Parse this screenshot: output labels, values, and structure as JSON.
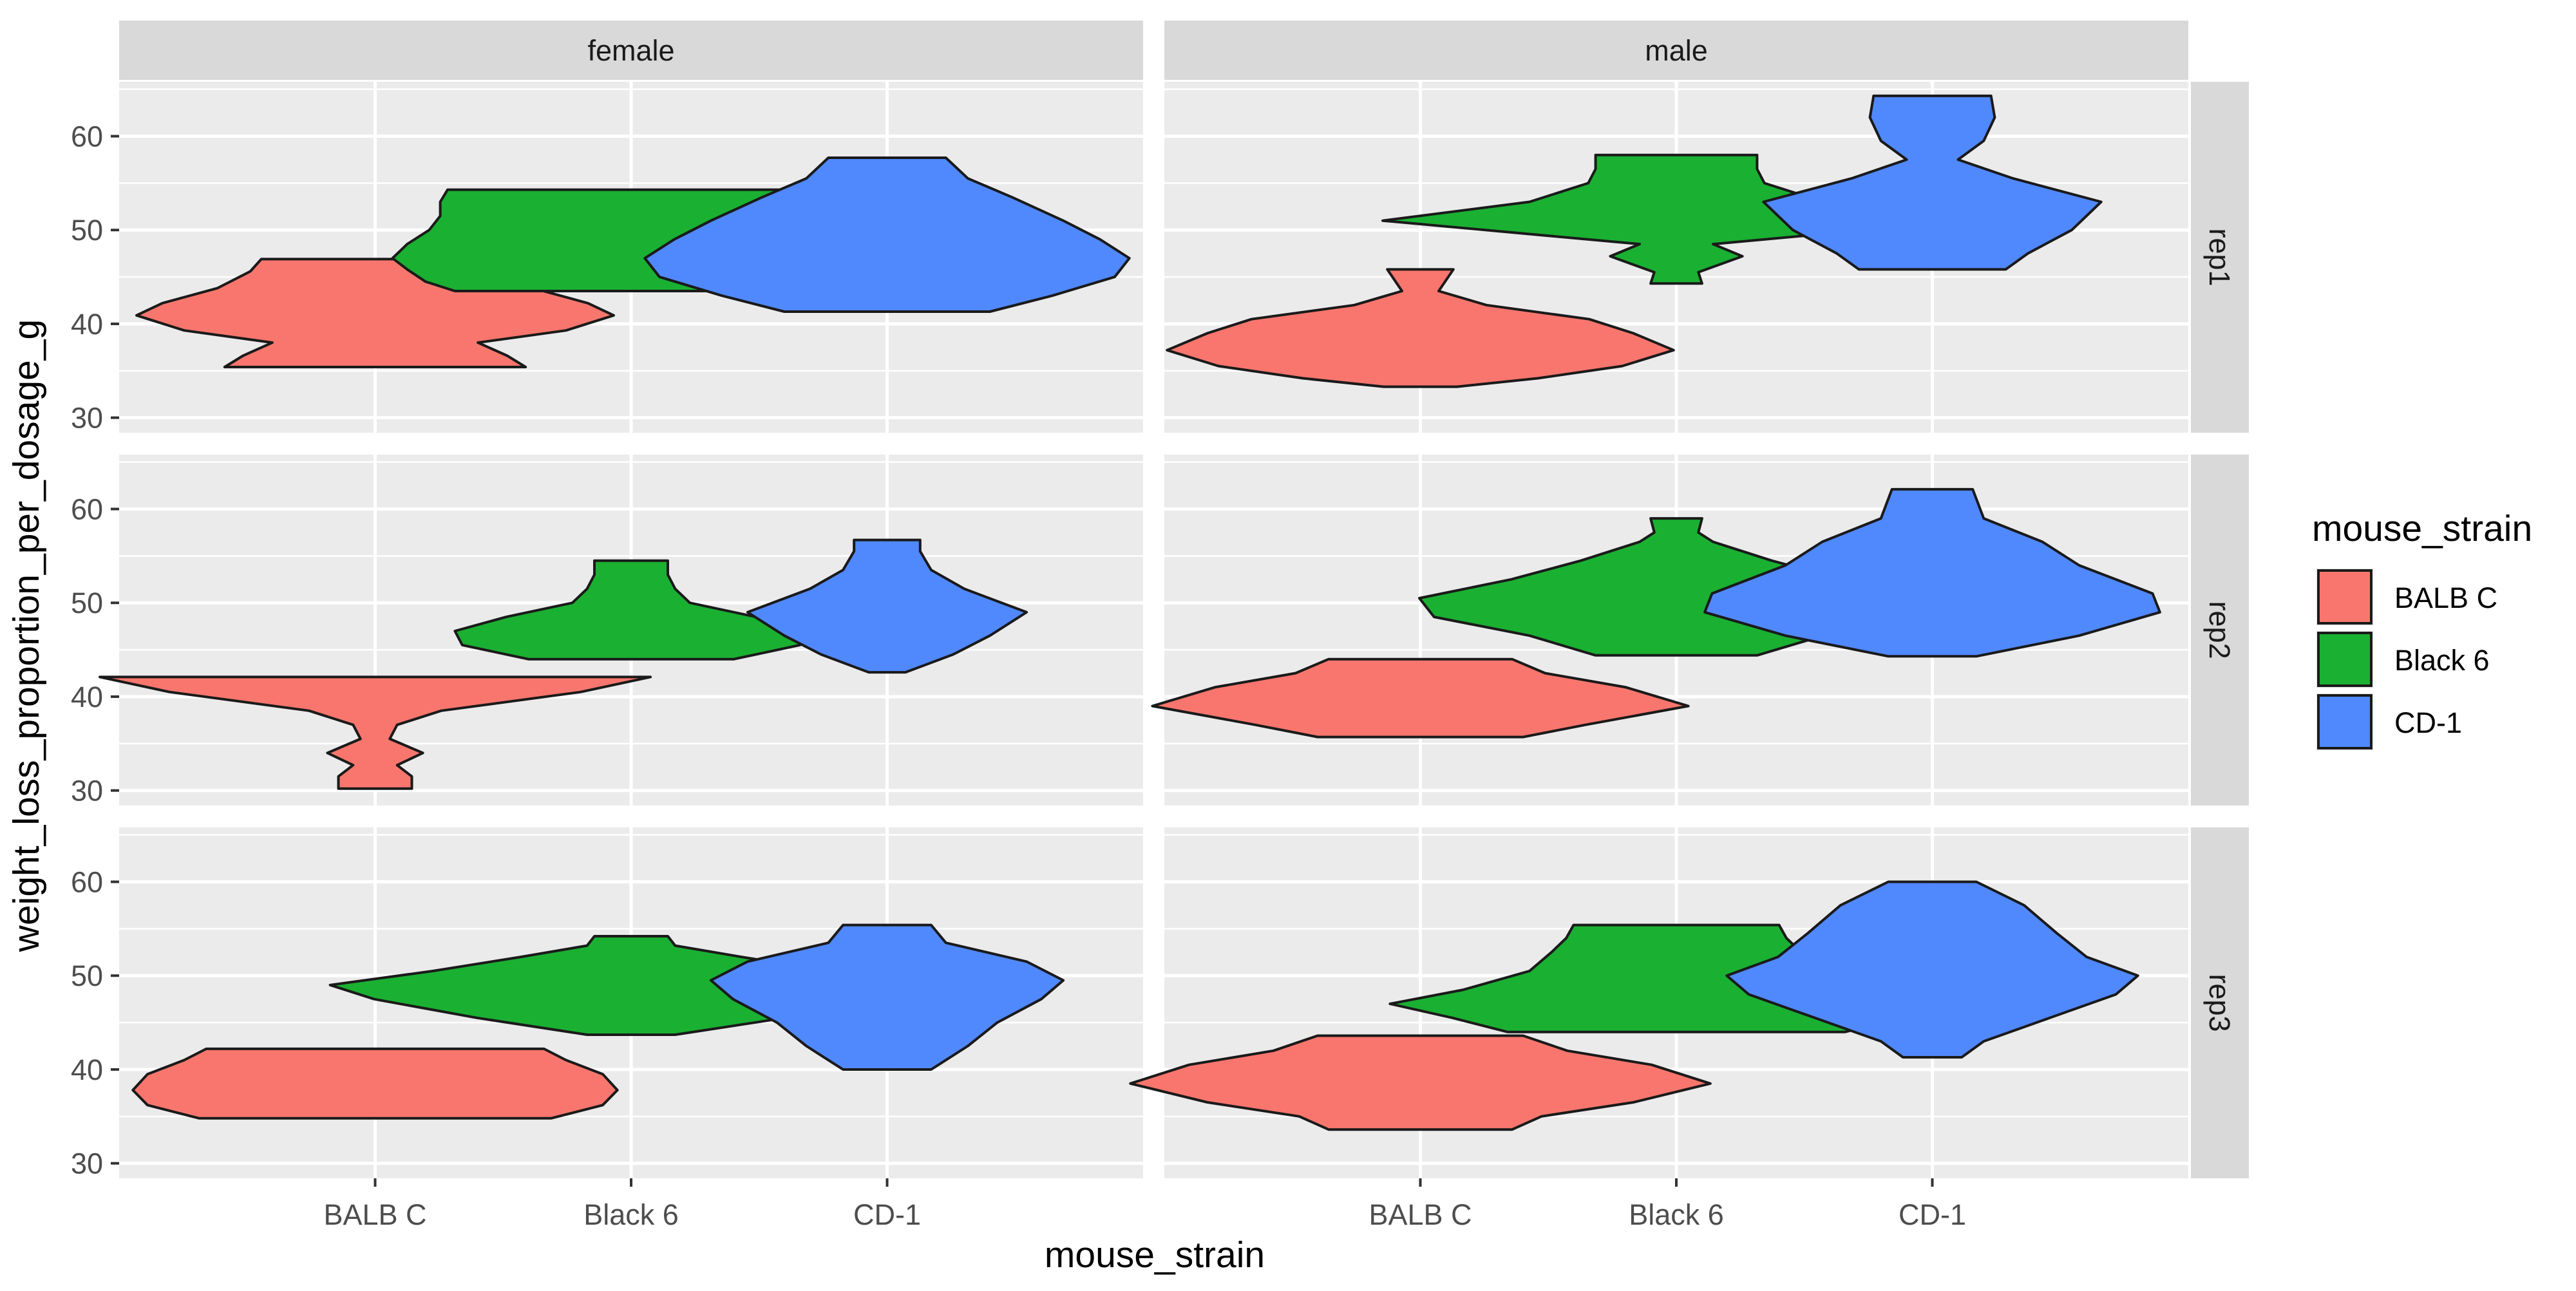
{
  "chart_data": {
    "type": "violin",
    "facet_cols": [
      "female",
      "male"
    ],
    "facet_rows": [
      "rep1",
      "rep2",
      "rep3"
    ],
    "categories": [
      "BALB C",
      "Black 6",
      "CD-1"
    ],
    "xlabel": "mouse_strain",
    "ylabel": "weight_loss_proportion_per_dosage_g",
    "y_ticks": [
      30,
      40,
      50,
      60
    ],
    "ylim": [
      28.4,
      65.8
    ],
    "grid": true,
    "legend": {
      "title": "mouse_strain",
      "position": "right",
      "entries": [
        "BALB C",
        "Black 6",
        "CD-1"
      ]
    },
    "colors": {
      "BALB C": "#f8766d",
      "Black 6": "#1ab032",
      "CD-1": "#5088fe"
    },
    "violins": [
      {
        "sex": "female",
        "rep": "rep1",
        "strain": "BALB C",
        "profile": [
          [
            35.4,
            0.41
          ],
          [
            36.6,
            0.36
          ],
          [
            38.0,
            0.28
          ],
          [
            39.3,
            0.52
          ],
          [
            40.9,
            0.65
          ],
          [
            42.2,
            0.58
          ],
          [
            43.8,
            0.43
          ],
          [
            45.6,
            0.34
          ],
          [
            46.9,
            0.31
          ]
        ]
      },
      {
        "sex": "female",
        "rep": "rep1",
        "strain": "Black 6",
        "profile": [
          [
            43.5,
            0.48
          ],
          [
            44.5,
            0.56
          ],
          [
            45.8,
            0.61
          ],
          [
            47.0,
            0.65
          ],
          [
            48.5,
            0.61
          ],
          [
            50.0,
            0.55
          ],
          [
            51.5,
            0.52
          ],
          [
            53.0,
            0.52
          ],
          [
            54.3,
            0.5
          ]
        ]
      },
      {
        "sex": "female",
        "rep": "rep1",
        "strain": "CD-1",
        "profile": [
          [
            41.3,
            0.28
          ],
          [
            43.0,
            0.45
          ],
          [
            45.0,
            0.62
          ],
          [
            47.0,
            0.66
          ],
          [
            49.0,
            0.58
          ],
          [
            51.0,
            0.48
          ],
          [
            53.5,
            0.34
          ],
          [
            55.5,
            0.22
          ],
          [
            57.7,
            0.16
          ]
        ]
      },
      {
        "sex": "male",
        "rep": "rep1",
        "strain": "BALB C",
        "profile": [
          [
            33.3,
            0.1
          ],
          [
            34.2,
            0.32
          ],
          [
            35.5,
            0.55
          ],
          [
            37.2,
            0.69
          ],
          [
            39.0,
            0.58
          ],
          [
            40.5,
            0.46
          ],
          [
            42.0,
            0.18
          ],
          [
            43.5,
            0.05
          ],
          [
            45.8,
            0.09
          ]
        ]
      },
      {
        "sex": "male",
        "rep": "rep1",
        "strain": "Black 6",
        "profile": [
          [
            44.3,
            0.07
          ],
          [
            45.5,
            0.06
          ],
          [
            47.2,
            0.18
          ],
          [
            48.5,
            0.1
          ],
          [
            51.0,
            0.8
          ],
          [
            53.0,
            0.4
          ],
          [
            55.0,
            0.24
          ],
          [
            56.5,
            0.22
          ],
          [
            58.0,
            0.22
          ]
        ]
      },
      {
        "sex": "male",
        "rep": "rep1",
        "strain": "CD-1",
        "profile": [
          [
            45.8,
            0.2
          ],
          [
            47.5,
            0.26
          ],
          [
            50.0,
            0.38
          ],
          [
            53.0,
            0.46
          ],
          [
            55.5,
            0.22
          ],
          [
            57.5,
            0.07
          ],
          [
            59.5,
            0.14
          ],
          [
            62.0,
            0.17
          ],
          [
            64.3,
            0.16
          ]
        ]
      },
      {
        "sex": "female",
        "rep": "rep2",
        "strain": "BALB C",
        "profile": [
          [
            30.2,
            0.1
          ],
          [
            31.5,
            0.1
          ],
          [
            32.7,
            0.06
          ],
          [
            34.0,
            0.13
          ],
          [
            35.5,
            0.04
          ],
          [
            37.0,
            0.06
          ],
          [
            38.5,
            0.18
          ],
          [
            40.5,
            0.56
          ],
          [
            42.1,
            0.75
          ]
        ]
      },
      {
        "sex": "female",
        "rep": "rep2",
        "strain": "Black 6",
        "profile": [
          [
            44.0,
            0.28
          ],
          [
            45.5,
            0.46
          ],
          [
            47.0,
            0.48
          ],
          [
            48.5,
            0.34
          ],
          [
            50.0,
            0.16
          ],
          [
            51.5,
            0.12
          ],
          [
            53.0,
            0.1
          ],
          [
            54.5,
            0.1
          ]
        ]
      },
      {
        "sex": "female",
        "rep": "rep2",
        "strain": "CD-1",
        "profile": [
          [
            42.6,
            0.05
          ],
          [
            44.5,
            0.18
          ],
          [
            46.5,
            0.28
          ],
          [
            49.0,
            0.38
          ],
          [
            51.5,
            0.21
          ],
          [
            53.5,
            0.12
          ],
          [
            55.5,
            0.09
          ],
          [
            56.7,
            0.09
          ]
        ]
      },
      {
        "sex": "male",
        "rep": "rep2",
        "strain": "BALB C",
        "profile": [
          [
            35.7,
            0.28
          ],
          [
            37.0,
            0.45
          ],
          [
            39.0,
            0.73
          ],
          [
            41.0,
            0.56
          ],
          [
            42.5,
            0.34
          ],
          [
            44.0,
            0.25
          ]
        ]
      },
      {
        "sex": "male",
        "rep": "rep2",
        "strain": "Black 6",
        "profile": [
          [
            44.4,
            0.22
          ],
          [
            46.5,
            0.4
          ],
          [
            48.5,
            0.66
          ],
          [
            50.5,
            0.7
          ],
          [
            52.5,
            0.45
          ],
          [
            54.5,
            0.26
          ],
          [
            56.5,
            0.1
          ],
          [
            57.5,
            0.06
          ],
          [
            59.0,
            0.07
          ]
        ]
      },
      {
        "sex": "male",
        "rep": "rep2",
        "strain": "CD-1",
        "profile": [
          [
            44.3,
            0.12
          ],
          [
            46.5,
            0.4
          ],
          [
            49.0,
            0.62
          ],
          [
            51.0,
            0.6
          ],
          [
            54.0,
            0.4
          ],
          [
            56.5,
            0.3
          ],
          [
            59.0,
            0.14
          ],
          [
            62.1,
            0.11
          ]
        ]
      },
      {
        "sex": "female",
        "rep": "rep3",
        "strain": "BALB C",
        "profile": [
          [
            34.8,
            0.48
          ],
          [
            36.2,
            0.62
          ],
          [
            37.8,
            0.66
          ],
          [
            39.5,
            0.62
          ],
          [
            41.0,
            0.52
          ],
          [
            42.2,
            0.46
          ]
        ]
      },
      {
        "sex": "female",
        "rep": "rep3",
        "strain": "Black 6",
        "profile": [
          [
            43.7,
            0.12
          ],
          [
            45.5,
            0.42
          ],
          [
            47.5,
            0.7
          ],
          [
            49.0,
            0.82
          ],
          [
            50.5,
            0.54
          ],
          [
            52.0,
            0.3
          ],
          [
            53.2,
            0.12
          ],
          [
            54.2,
            0.1
          ]
        ]
      },
      {
        "sex": "female",
        "rep": "rep3",
        "strain": "CD-1",
        "profile": [
          [
            40.0,
            0.12
          ],
          [
            42.5,
            0.22
          ],
          [
            45.0,
            0.3
          ],
          [
            47.5,
            0.42
          ],
          [
            49.5,
            0.48
          ],
          [
            51.5,
            0.38
          ],
          [
            53.5,
            0.16
          ],
          [
            55.4,
            0.12
          ]
        ]
      },
      {
        "sex": "male",
        "rep": "rep3",
        "strain": "BALB C",
        "profile": [
          [
            33.6,
            0.25
          ],
          [
            35.0,
            0.33
          ],
          [
            36.5,
            0.58
          ],
          [
            38.5,
            0.79
          ],
          [
            40.5,
            0.63
          ],
          [
            42.0,
            0.4
          ],
          [
            43.6,
            0.28
          ]
        ]
      },
      {
        "sex": "male",
        "rep": "rep3",
        "strain": "Black 6",
        "profile": [
          [
            44.0,
            0.46
          ],
          [
            45.5,
            0.61
          ],
          [
            47.0,
            0.78
          ],
          [
            48.5,
            0.58
          ],
          [
            50.5,
            0.4
          ],
          [
            52.5,
            0.34
          ],
          [
            54.0,
            0.3
          ],
          [
            55.4,
            0.28
          ]
        ]
      },
      {
        "sex": "male",
        "rep": "rep3",
        "strain": "CD-1",
        "profile": [
          [
            41.3,
            0.08
          ],
          [
            43.0,
            0.14
          ],
          [
            45.5,
            0.32
          ],
          [
            48.0,
            0.5
          ],
          [
            50.0,
            0.56
          ],
          [
            52.0,
            0.42
          ],
          [
            54.5,
            0.34
          ],
          [
            57.5,
            0.25
          ],
          [
            60.0,
            0.12
          ]
        ]
      }
    ]
  }
}
